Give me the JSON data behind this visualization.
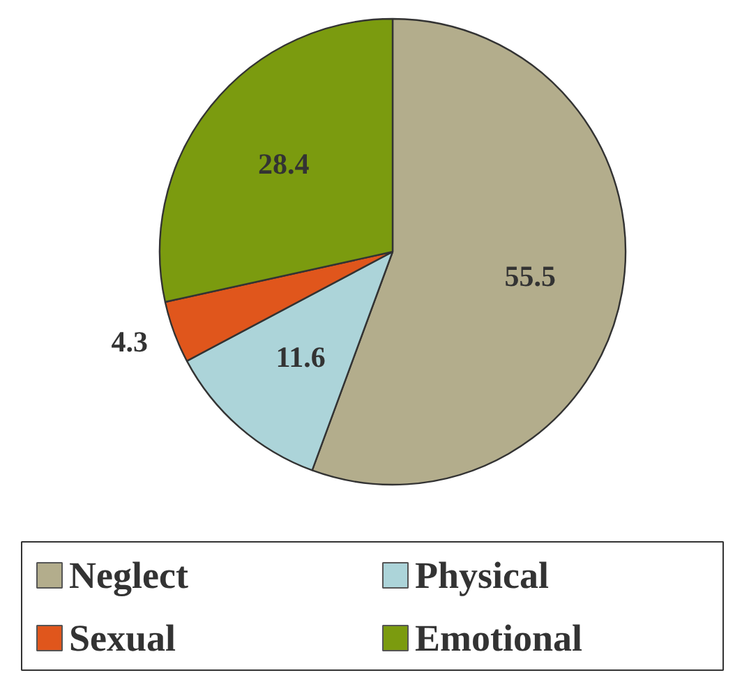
{
  "chart_data": {
    "type": "pie",
    "categories": [
      "Neglect",
      "Physical",
      "Sexual",
      "Emotional"
    ],
    "values": [
      55.5,
      11.6,
      4.3,
      28.4
    ],
    "colors": [
      "#b3ad8c",
      "#acd4d9",
      "#e0561c",
      "#7b9b0f"
    ],
    "data_labels": true,
    "legend": "bottom"
  }
}
